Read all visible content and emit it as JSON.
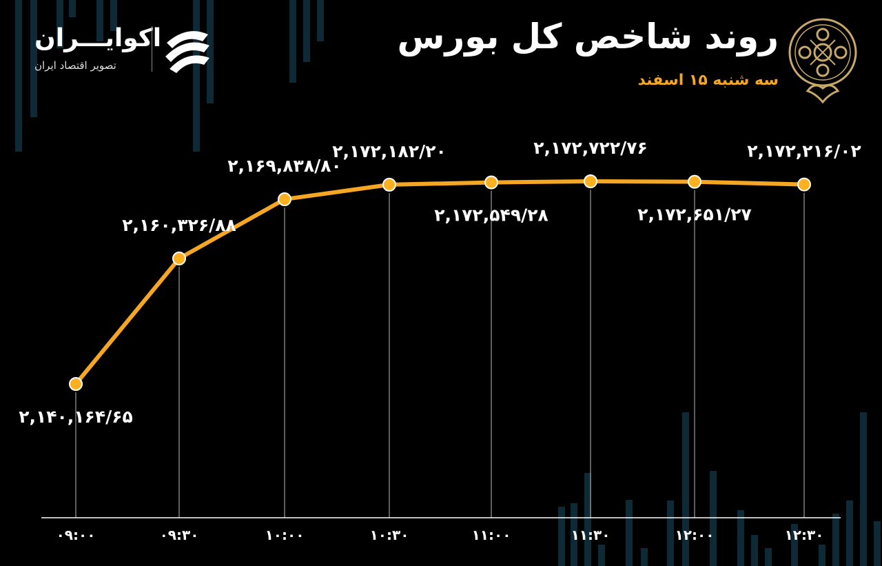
{
  "header": {
    "title": "روند شاخص کل بورس",
    "subtitle": "سه شنبه ۱۵ اسفند"
  },
  "brand": {
    "name": "اکوایـــران",
    "tagline": "تصویر اقتصاد ایران"
  },
  "colors": {
    "background": "#000000",
    "line": "#f5a623",
    "marker": "#ffb020",
    "text": "#ffffff",
    "gridline": "#bbbbbb",
    "decor": "#0d2a36"
  },
  "icons": {
    "brand_mark": "stacked-chevrons-icon",
    "emblem": "stock-exchange-emblem-icon"
  },
  "chart_data": {
    "type": "line",
    "title": "روند شاخص کل بورس",
    "subtitle": "سه شنبه ۱۵ اسفند",
    "categories": [
      "۰۹:۰۰",
      "۰۹:۳۰",
      "۱۰:۰۰",
      "۱۰:۳۰",
      "۱۱:۰۰",
      "۱۱:۳۰",
      "۱۲:۰۰",
      "۱۲:۳۰"
    ],
    "values": [
      2140164.65,
      2160326.88,
      2169838.8,
      2172182.2,
      2172549.28,
      2172722.76,
      2172651.27,
      2172216.02
    ],
    "data_labels": [
      "۲,۱۴۰,۱۶۴/۶۵",
      "۲,۱۶۰,۳۲۶/۸۸",
      "۲,۱۶۹,۸۳۸/۸۰",
      "۲,۱۷۲,۱۸۲/۲۰",
      "۲,۱۷۲,۵۴۹/۲۸",
      "۲,۱۷۲,۷۲۲/۷۶",
      "۲,۱۷۲,۶۵۱/۲۷",
      "۲,۱۷۲,۲۱۶/۰۲"
    ],
    "label_side": [
      "below",
      "above",
      "above",
      "above",
      "below",
      "above",
      "below",
      "above"
    ],
    "xlabel": "",
    "ylabel": "",
    "grid": false,
    "legend": "none"
  }
}
